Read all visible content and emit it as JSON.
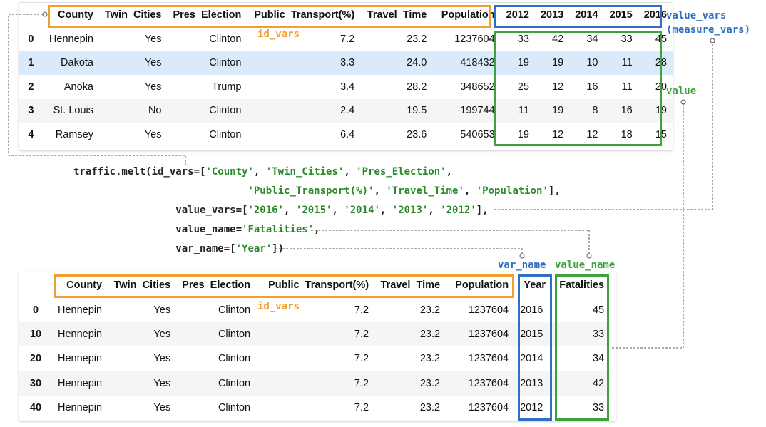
{
  "top_table": {
    "columns": [
      "County",
      "Twin_Cities",
      "Pres_Election",
      "Public_Transport(%)",
      "Travel_Time",
      "Population",
      "2012",
      "2013",
      "2014",
      "2015",
      "2016"
    ],
    "rows": [
      {
        "index": "0",
        "cells": [
          "Hennepin",
          "Yes",
          "Clinton",
          "7.2",
          "23.2",
          "1237604",
          "33",
          "42",
          "34",
          "33",
          "45"
        ]
      },
      {
        "index": "1",
        "cells": [
          "Dakota",
          "Yes",
          "Clinton",
          "3.3",
          "24.0",
          "418432",
          "19",
          "19",
          "10",
          "11",
          "28"
        ]
      },
      {
        "index": "2",
        "cells": [
          "Anoka",
          "Yes",
          "Trump",
          "3.4",
          "28.2",
          "348652",
          "25",
          "12",
          "16",
          "11",
          "20"
        ]
      },
      {
        "index": "3",
        "cells": [
          "St. Louis",
          "No",
          "Clinton",
          "2.4",
          "19.5",
          "199744",
          "11",
          "19",
          "8",
          "16",
          "19"
        ]
      },
      {
        "index": "4",
        "cells": [
          "Ramsey",
          "Yes",
          "Clinton",
          "6.4",
          "23.6",
          "540653",
          "19",
          "12",
          "12",
          "18",
          "15"
        ]
      }
    ]
  },
  "bottom_table": {
    "columns": [
      "County",
      "Twin_Cities",
      "Pres_Election",
      "Public_Transport(%)",
      "Travel_Time",
      "Population",
      "Year",
      "Fatalities"
    ],
    "rows": [
      {
        "index": "0",
        "cells": [
          "Hennepin",
          "Yes",
          "Clinton",
          "7.2",
          "23.2",
          "1237604",
          "2016",
          "45"
        ]
      },
      {
        "index": "10",
        "cells": [
          "Hennepin",
          "Yes",
          "Clinton",
          "7.2",
          "23.2",
          "1237604",
          "2015",
          "33"
        ]
      },
      {
        "index": "20",
        "cells": [
          "Hennepin",
          "Yes",
          "Clinton",
          "7.2",
          "23.2",
          "1237604",
          "2014",
          "34"
        ]
      },
      {
        "index": "30",
        "cells": [
          "Hennepin",
          "Yes",
          "Clinton",
          "7.2",
          "23.2",
          "1237604",
          "2013",
          "42"
        ]
      },
      {
        "index": "40",
        "cells": [
          "Hennepin",
          "Yes",
          "Clinton",
          "7.2",
          "23.2",
          "1237604",
          "2012",
          "33"
        ]
      }
    ]
  },
  "labels": {
    "id_vars_top": "id_vars",
    "id_vars_bottom": "id_vars",
    "value_vars": "value_vars",
    "measure_vars": "(measure_vars)",
    "value": "value",
    "var_name": "var_name",
    "value_name": "value_name"
  },
  "code": {
    "line1_prefix": "traffic.melt(id_vars=[",
    "line1_args": [
      "'County'",
      "'Twin_Cities'",
      "'Pres_Election'"
    ],
    "line2_args": [
      "'Public_Transport(%)'",
      "'Travel_Time'",
      "'Population'"
    ],
    "line3_prefix": "value_vars=[",
    "line3_args": [
      "'2016'",
      "'2015'",
      "'2014'",
      "'2013'",
      "'2012'"
    ],
    "line4_prefix": "value_name=",
    "line4_arg": "'Fatalities'",
    "line5_prefix": "var_name=[",
    "line5_arg": "'Year'"
  },
  "colors": {
    "id_vars": "#f0a030",
    "value_vars": "#3070c0",
    "value": "#3da23d",
    "string_literal": "#2a8a2a",
    "highlight_row": "#d9ebfa"
  }
}
